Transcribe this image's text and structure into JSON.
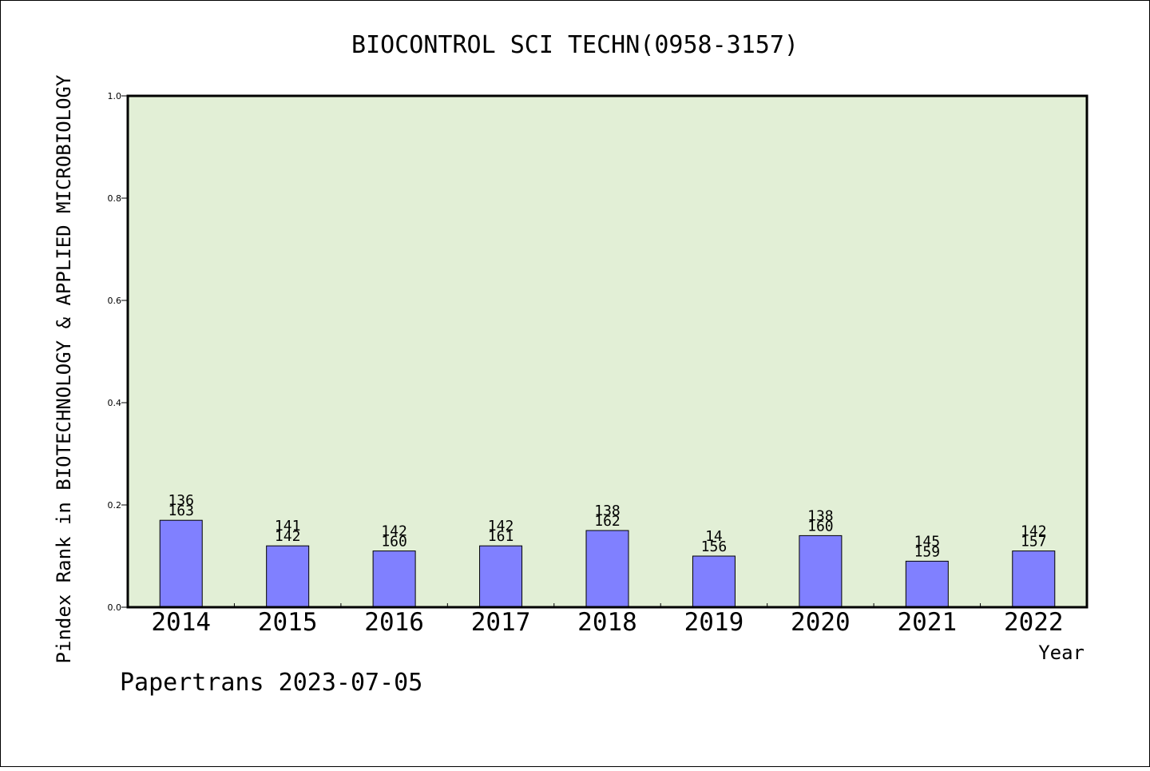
{
  "chart_data": {
    "type": "bar",
    "title": "BIOCONTROL SCI TECHN(0958-3157)",
    "xlabel": "Year",
    "ylabel": "Pindex Rank in BIOTECHNOLOGY & APPLIED MICROBIOLOGY",
    "categories": [
      "2014",
      "2015",
      "2016",
      "2017",
      "2018",
      "2019",
      "2020",
      "2021",
      "2022"
    ],
    "values": [
      0.17,
      0.12,
      0.11,
      0.12,
      0.15,
      0.1,
      0.14,
      0.09,
      0.11
    ],
    "labels_top": [
      "136",
      "141",
      "142",
      "142",
      "138",
      "14",
      "138",
      "145",
      "142"
    ],
    "labels_bottom": [
      "163",
      "142",
      "160",
      "161",
      "162",
      "156",
      "160",
      "159",
      "157"
    ],
    "ylim": [
      0,
      1.0
    ],
    "yticks": [
      "0.0",
      "0.2",
      "0.4",
      "0.6",
      "0.8",
      "1.0"
    ],
    "grid": false,
    "colors": {
      "bar": "#8080ff",
      "plot_background": "#e2efd6"
    }
  },
  "footer": "Papertrans 2023-07-05"
}
